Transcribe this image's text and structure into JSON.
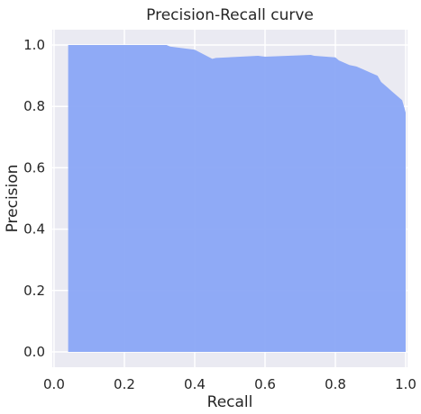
{
  "chart_data": {
    "type": "area",
    "title": "Precision-Recall curve",
    "xlabel": "Recall",
    "ylabel": "Precision",
    "xlim": [
      -0.005,
      1.005
    ],
    "ylim": [
      -0.05,
      1.05
    ],
    "xticks": [
      "0.0",
      "0.2",
      "0.4",
      "0.6",
      "0.8",
      "1.0"
    ],
    "yticks": [
      "0.0",
      "0.2",
      "0.4",
      "0.6",
      "0.8",
      "1.0"
    ],
    "grid": true,
    "colors": {
      "background": "#eaeaf2",
      "grid": "#ffffff",
      "fill": "#8aa6f5"
    },
    "series": [
      {
        "x": [
          0.04,
          0.04,
          0.32,
          0.33,
          0.4,
          0.45,
          0.46,
          0.58,
          0.6,
          0.73,
          0.74,
          0.8,
          0.81,
          0.83,
          0.84,
          0.86,
          0.88,
          0.9,
          0.92,
          0.93,
          0.94,
          0.95,
          0.96,
          0.97,
          0.98,
          0.99,
          0.995,
          1.0,
          1.0
        ],
        "y": [
          0.0,
          1.0,
          1.0,
          0.995,
          0.985,
          0.955,
          0.958,
          0.965,
          0.962,
          0.968,
          0.965,
          0.96,
          0.95,
          0.94,
          0.935,
          0.93,
          0.92,
          0.91,
          0.9,
          0.88,
          0.87,
          0.86,
          0.85,
          0.84,
          0.83,
          0.82,
          0.8,
          0.78,
          0.0
        ]
      }
    ]
  }
}
